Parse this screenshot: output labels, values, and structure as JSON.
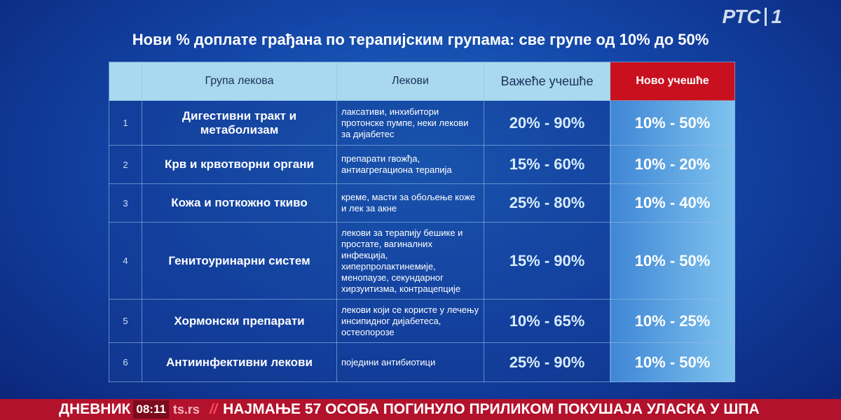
{
  "header": {
    "title": "Нови % доплате грађана по терапијским групама: све групе од 10% до 50%",
    "logo": "РТС",
    "channel": "1"
  },
  "table": {
    "columns": [
      "Група лекова",
      "Лекови",
      "Важеће учешће",
      "Ново учешће"
    ],
    "rows": [
      [
        "1",
        "Дигестивни тракт и метаболизам",
        "лаксативи, инхибитори протонске пумпе, неки лекови за дијабетес",
        "20% - 90%",
        "10% - 50%"
      ],
      [
        "2",
        "Крв и крвотворни органи",
        "препарати гвожђа, антиагрегациона терапија",
        "15% - 60%",
        "10% - 20%"
      ],
      [
        "3",
        "Кожа и поткожно ткиво",
        "креме, масти за обољење коже и лек за акне",
        "25% - 80%",
        "10% - 40%"
      ],
      [
        "4",
        "Генитоуринарни систем",
        "лекови за терапију бешике и простате, вагиналних инфекција, хиперпролактинемије, менопаузе, секундарног хирзуитизма, контрацепције",
        "15% - 90%",
        "10% - 50%"
      ],
      [
        "5",
        "Хормонски препарати",
        "лекови који се користе у лечењу инсипидног дијабетеса, остеопорозе",
        "10% - 65%",
        "10% - 25%"
      ],
      [
        "6",
        "Антиинфективни лекови",
        "поједини антибиотици",
        "25% - 90%",
        "10% - 50%"
      ]
    ]
  },
  "ticker": {
    "show": "ДНЕВНИК",
    "time": "08:11",
    "site": "ts.rs",
    "separator": "//",
    "headline": "НАЈМАЊЕ 57 ОСОБА ПОГИНУЛО ПРИЛИКОМ ПОКУШАЈА УЛАСКА У ШПА"
  }
}
